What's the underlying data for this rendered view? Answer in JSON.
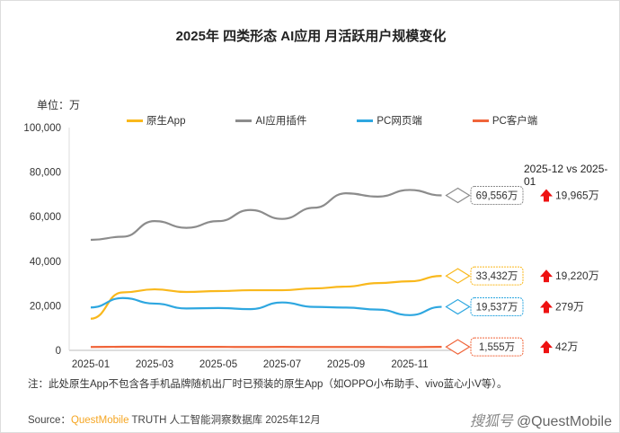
{
  "title": "2025年 四类形态 AI应用 月活跃用户规模变化",
  "unit_label": "单位：万",
  "comparison_label": "2025-12 vs 2025-01",
  "note": "注：此处原生App不包含各手机品牌随机出厂时已预装的原生App（如OPPO小布助手、vivo蓝心小V等）。",
  "source": {
    "prefix": "Source：",
    "brand": "QuestMobile",
    "rest": " TRUTH 人工智能洞察数据库 2025年12月"
  },
  "watermark": {
    "platform": "搜狐号",
    "handle": "@QuestMobile"
  },
  "chart_data": {
    "type": "line",
    "title": "2025年 四类形态 AI应用 月活跃用户规模变化",
    "ylabel": "单位：万",
    "ylim": [
      0,
      100000
    ],
    "yticks": [
      0,
      20000,
      40000,
      60000,
      80000,
      100000
    ],
    "ytick_labels": [
      "0",
      "20,000",
      "40,000",
      "60,000",
      "80,000",
      "100,000"
    ],
    "x": [
      "2025-01",
      "2025-02",
      "2025-03",
      "2025-04",
      "2025-05",
      "2025-06",
      "2025-07",
      "2025-08",
      "2025-09",
      "2025-10",
      "2025-11",
      "2025-12"
    ],
    "xtick_labels": [
      "2025-01",
      "2025-03",
      "2025-05",
      "2025-07",
      "2025-09",
      "2025-11"
    ],
    "legend_position": "top",
    "series": [
      {
        "name": "原生App",
        "color": "#f9b81c",
        "values": [
          14212,
          26000,
          27400,
          26200,
          26600,
          27000,
          27000,
          27800,
          28600,
          30200,
          31000,
          33432
        ],
        "end_label": "33,432万",
        "change": "19,220万"
      },
      {
        "name": "AI应用插件",
        "color": "#8c8c8c",
        "values": [
          49591,
          51000,
          58000,
          55000,
          58000,
          63000,
          59000,
          64000,
          70500,
          69000,
          72000,
          69556
        ],
        "end_label": "69,556万",
        "change": "19,965万"
      },
      {
        "name": "PC网页端",
        "color": "#2ea7e0",
        "values": [
          19258,
          23500,
          21000,
          18800,
          19000,
          18500,
          21500,
          19500,
          19200,
          18300,
          15800,
          19537
        ],
        "end_label": "19,537万",
        "change": "279万"
      },
      {
        "name": "PC客户端",
        "color": "#f0653a",
        "values": [
          1513,
          1600,
          1600,
          1550,
          1550,
          1500,
          1550,
          1500,
          1500,
          1500,
          1450,
          1555
        ],
        "end_label": "1,555万",
        "change": "42万"
      }
    ],
    "change_arrow_color": "#ee1111"
  }
}
